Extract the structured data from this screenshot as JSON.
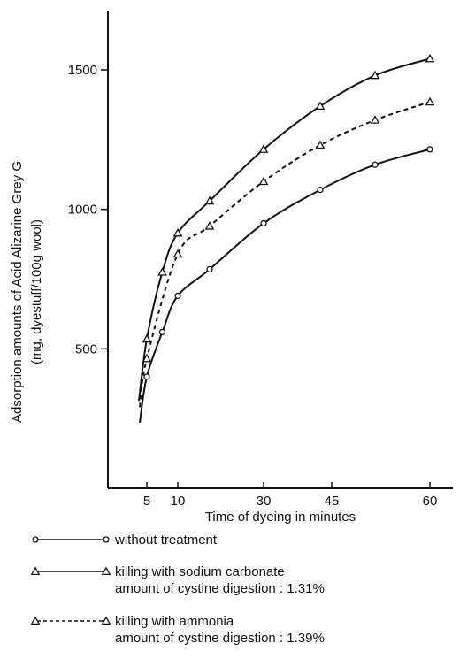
{
  "chart_data": {
    "type": "line",
    "title": "",
    "xlabel": "Time of dyeing in minutes",
    "ylabel": "Adsorption amounts of Acid Alizarine Grey G",
    "ylabel2": "(mg, dyestuff/100g wool)",
    "x_ticks": [
      5,
      10,
      30,
      45,
      60
    ],
    "x_tick_labels": [
      "5",
      "10",
      "30",
      "45",
      "60"
    ],
    "y_ticks": [
      500,
      1000,
      1500
    ],
    "y_tick_labels": [
      "500",
      "1000",
      "1500"
    ],
    "ylim": [
      0,
      1900
    ],
    "grid": false,
    "legend_position": "bottom",
    "series": [
      {
        "name": "without treatment",
        "marker": "circle",
        "line_style": "solid",
        "x": [
          5,
          7.5,
          10,
          15,
          30,
          42,
          52,
          60
        ],
        "y": [
          400,
          560,
          690,
          785,
          950,
          1070,
          1160,
          1215
        ]
      },
      {
        "name": "killing with sodium carbonate",
        "name2": "amount of cystine digestion : 1.31%",
        "marker": "triangle",
        "line_style": "solid",
        "x": [
          5,
          7.5,
          10,
          15,
          30,
          42,
          52,
          60
        ],
        "y": [
          535,
          775,
          915,
          1030,
          1215,
          1370,
          1480,
          1540
        ]
      },
      {
        "name": "killing with ammonia",
        "name2": "amount of cystine digestion : 1.39%",
        "marker": "triangle",
        "line_style": "dashed",
        "x": [
          5,
          10,
          15,
          30,
          42,
          52,
          60
        ],
        "y": [
          465,
          840,
          940,
          1100,
          1230,
          1320,
          1385
        ]
      }
    ]
  }
}
